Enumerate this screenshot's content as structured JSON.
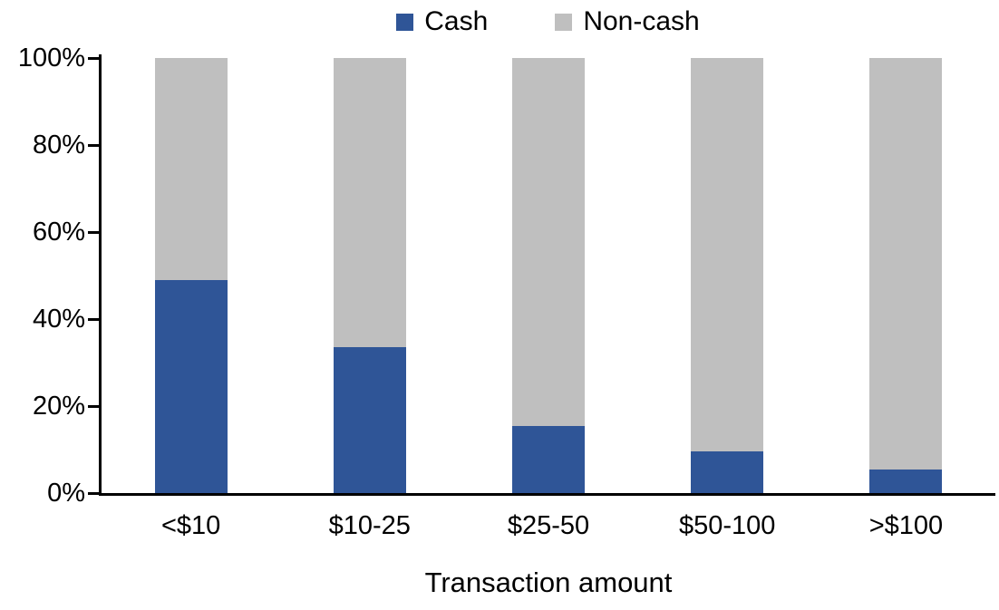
{
  "chart_data": {
    "type": "bar",
    "variant": "stacked-100-percent",
    "title": "",
    "xlabel": "Transaction amount",
    "ylabel": "",
    "categories": [
      "<$10",
      "$10-25",
      "$25-50",
      "$50-100",
      ">$100"
    ],
    "series": [
      {
        "name": "Cash",
        "color": "#2F5597",
        "values": [
          49,
          33.5,
          15.5,
          9.5,
          5.5
        ]
      },
      {
        "name": "Non-cash",
        "color": "#BFBFBF",
        "values": [
          51,
          66.5,
          84.5,
          90.5,
          94.5
        ]
      }
    ],
    "y_ticks": [
      {
        "label": "0%",
        "value": 0
      },
      {
        "label": "20%",
        "value": 20
      },
      {
        "label": "40%",
        "value": 40
      },
      {
        "label": "60%",
        "value": 60
      },
      {
        "label": "80%",
        "value": 80
      },
      {
        "label": "100%",
        "value": 100
      }
    ],
    "ylim": [
      0,
      100
    ],
    "grid": false,
    "legend_position": "top",
    "axis_color": "#000000",
    "text_color": "#000000",
    "background_color": "#FFFFFF"
  }
}
